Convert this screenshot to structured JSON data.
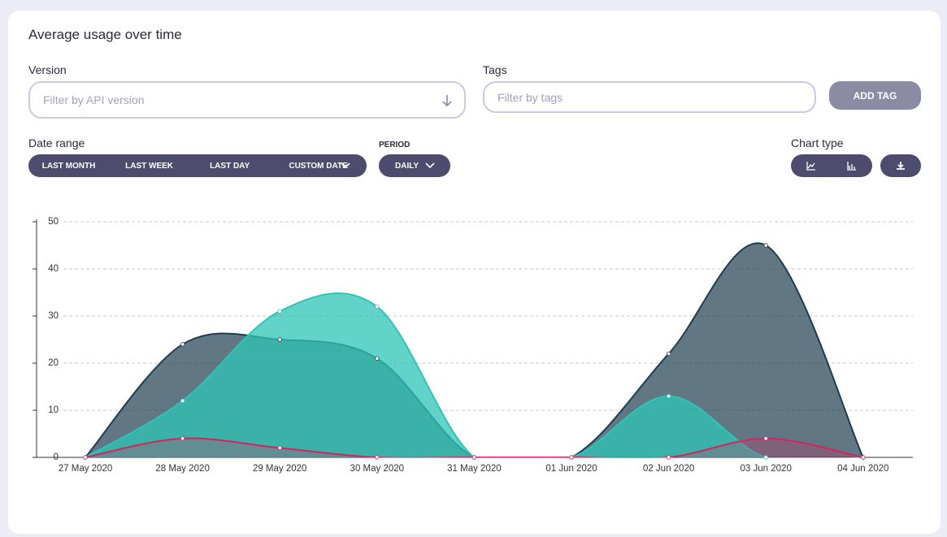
{
  "title": "Average usage over time",
  "filters": {
    "version": {
      "label": "Version",
      "placeholder": "Filter by API version"
    },
    "tags": {
      "label": "Tags",
      "placeholder": "Filter by tags",
      "button": "ADD TAG"
    }
  },
  "date_range": {
    "label": "Date range",
    "options": [
      "LAST MONTH",
      "LAST WEEK",
      "LAST DAY",
      "CUSTOM DATE"
    ]
  },
  "period": {
    "label": "PERIOD",
    "value": "DAILY"
  },
  "chart_type": {
    "label": "Chart type"
  },
  "chart_data": {
    "type": "area",
    "categories": [
      "27 May 2020",
      "28 May 2020",
      "29 May 2020",
      "30 May 2020",
      "31 May 2020",
      "01 Jun 2020",
      "02 Jun 2020",
      "03 Jun 2020",
      "04 Jun 2020"
    ],
    "series": [
      {
        "color": "#1f3d50",
        "values": [
          0,
          24,
          25,
          21,
          0,
          0,
          22,
          45,
          0
        ]
      },
      {
        "color": "#2ec4b6",
        "values": [
          0,
          12,
          31,
          32,
          0,
          0,
          13,
          0,
          0
        ]
      },
      {
        "color": "#d6245b",
        "values": [
          0,
          4,
          2,
          0,
          0,
          0,
          0,
          4,
          0
        ]
      }
    ],
    "ylim": [
      0,
      50
    ],
    "yticks": [
      0,
      10,
      20,
      30,
      40,
      50
    ],
    "grid": true
  }
}
